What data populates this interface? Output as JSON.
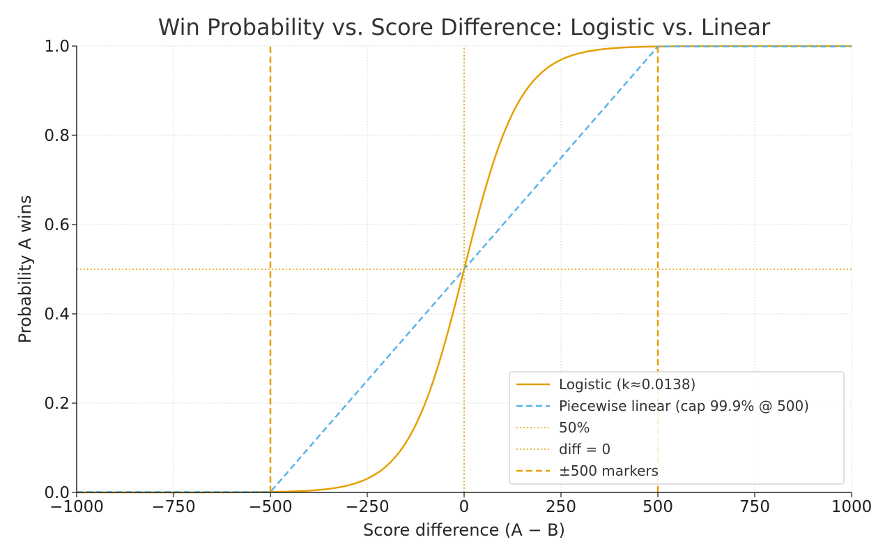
{
  "chart_data": {
    "type": "line",
    "title": "Win Probability vs. Score Difference: Logistic vs. Linear",
    "xlabel": "Score difference (A − B)",
    "ylabel": "Probability A wins",
    "xlim": [
      -1000,
      1000
    ],
    "ylim": [
      0,
      1
    ],
    "grid": true,
    "legend_position": "lower-right",
    "x_ticks": [
      -1000,
      -750,
      -500,
      -250,
      0,
      250,
      500,
      750,
      1000
    ],
    "x_tick_labels": [
      "−1000",
      "−750",
      "−500",
      "−250",
      "0",
      "250",
      "500",
      "750",
      "1000"
    ],
    "y_ticks": [
      0,
      0.2,
      0.4,
      0.6,
      0.8,
      1.0
    ],
    "y_tick_labels": [
      "0.0",
      "0.2",
      "0.4",
      "0.6",
      "0.8",
      "1.0"
    ],
    "series": [
      {
        "name": "Logistic (k≈0.0138)",
        "style": "solid",
        "color": "#E69F00",
        "k": 0.0138,
        "x": [
          -1000,
          -500,
          -400,
          -300,
          -250,
          -200,
          -150,
          -100,
          -50,
          0,
          50,
          100,
          150,
          200,
          250,
          300,
          400,
          500,
          1000
        ],
        "y": [
          1e-06,
          0.001,
          0.004,
          0.016,
          0.031,
          0.06,
          0.112,
          0.201,
          0.334,
          0.5,
          0.666,
          0.799,
          0.888,
          0.94,
          0.969,
          0.984,
          0.996,
          0.999,
          1.0
        ]
      },
      {
        "name": "Piecewise linear (cap 99.9% @ 500)",
        "style": "dashed",
        "color": "#56B4E9",
        "x": [
          -1000,
          -500,
          500,
          1000
        ],
        "y": [
          0.001,
          0.001,
          0.999,
          0.999
        ]
      },
      {
        "name": "50%",
        "style": "dotted",
        "color": "#E69F00",
        "x": [
          -1000,
          1000
        ],
        "y": [
          0.5,
          0.5
        ]
      },
      {
        "name": "diff = 0",
        "style": "dotted",
        "color": "#E69F00",
        "x": [
          0,
          0
        ],
        "y": [
          0,
          1
        ]
      },
      {
        "name": "±500 markers",
        "style": "dashed",
        "color": "#E69F00",
        "x": [
          -500,
          500
        ],
        "y": [
          0,
          1
        ]
      }
    ]
  }
}
